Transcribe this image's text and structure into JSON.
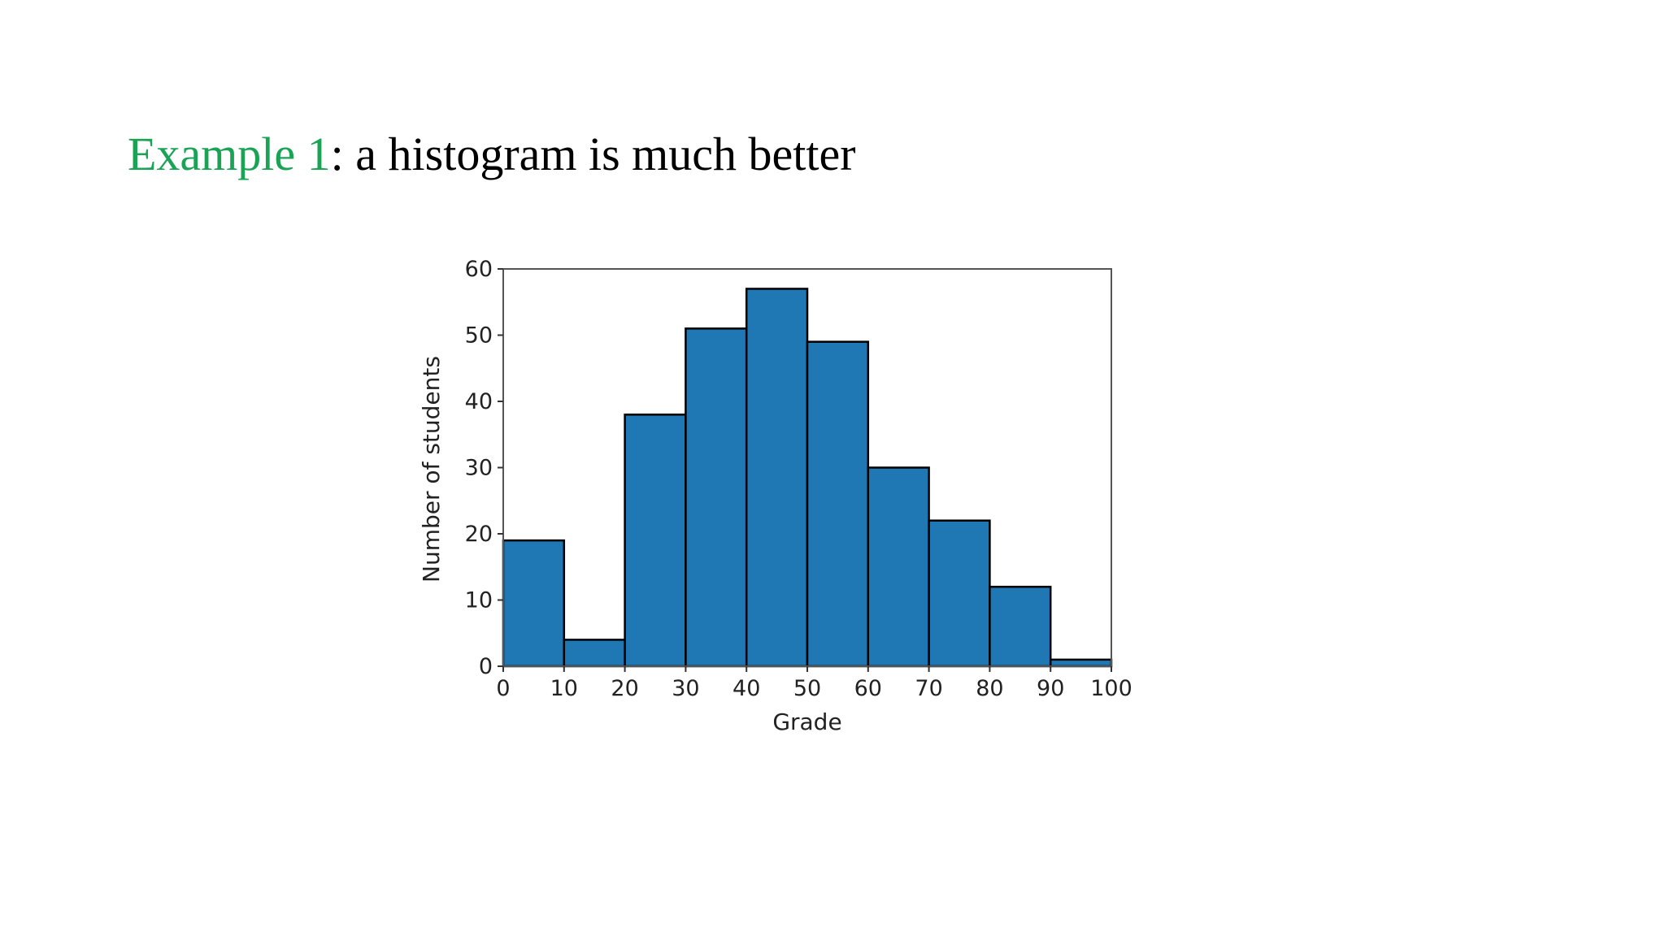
{
  "slide": {
    "title_highlight": "Example 1",
    "title_rest": ": a histogram is much better",
    "highlight_color": "#1aa354",
    "title_color": "#000000"
  },
  "chart_data": {
    "type": "bar",
    "subtype": "histogram",
    "bin_edges": [
      0,
      10,
      20,
      30,
      40,
      50,
      60,
      70,
      80,
      90,
      100
    ],
    "values": [
      19,
      4,
      38,
      51,
      57,
      49,
      30,
      22,
      12,
      1
    ],
    "xlabel": "Grade",
    "ylabel": "Number of students",
    "xlim": [
      0,
      100
    ],
    "ylim": [
      0,
      60
    ],
    "xticks": [
      "0",
      "10",
      "20",
      "30",
      "40",
      "50",
      "60",
      "70",
      "80",
      "90",
      "100"
    ],
    "yticks": [
      "0",
      "10",
      "20",
      "30",
      "40",
      "50",
      "60"
    ],
    "bar_color": "#1f77b4",
    "edge_color": "#000000",
    "grid": false,
    "legend": "none"
  }
}
